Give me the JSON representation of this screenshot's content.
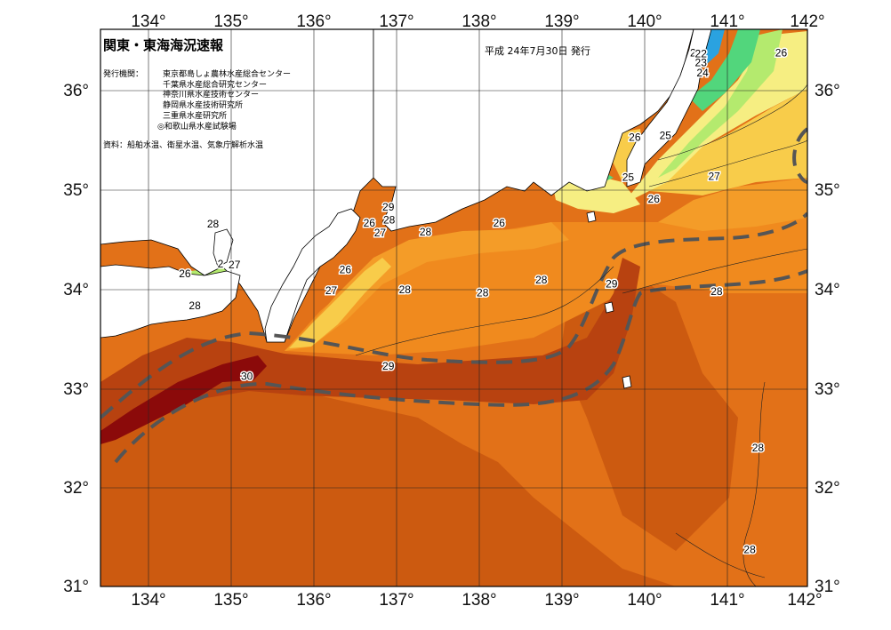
{
  "header": {
    "title": "関東・東海海況速報",
    "date": "平成 24年7月30日 発行",
    "issuer_label": "発行機関：",
    "issuers": [
      "東京都島しょ農林水産総合センター",
      "千葉県水産総合研究センター",
      "神奈川県水産技術センター",
      "静岡県水産技術研究所",
      "三重県水産研究所",
      "◎和歌山県水産試験場"
    ],
    "source": "資料：船舶水温、衛星水温、気象庁解析水温"
  },
  "axes": {
    "longitude_ticks": [
      "134°",
      "135°",
      "136°",
      "137°",
      "138°",
      "139°",
      "140°",
      "141°",
      "142°"
    ],
    "latitude_ticks": [
      "36°",
      "35°",
      "34°",
      "33°",
      "32°",
      "31°"
    ],
    "lon_range": [
      133.5,
      142
    ],
    "lat_range": [
      31,
      36.6
    ]
  },
  "isotherm_labels": [
    {
      "text": "21",
      "lon": 140.62,
      "lat": 36.38
    },
    {
      "text": "22",
      "lon": 140.68,
      "lat": 36.37
    },
    {
      "text": "23",
      "lon": 140.68,
      "lat": 36.28
    },
    {
      "text": "24",
      "lon": 140.7,
      "lat": 36.18
    },
    {
      "text": "26",
      "lon": 141.65,
      "lat": 36.38
    },
    {
      "text": "25",
      "lon": 140.25,
      "lat": 35.55
    },
    {
      "text": "26",
      "lon": 139.88,
      "lat": 35.53
    },
    {
      "text": "25",
      "lon": 139.8,
      "lat": 35.13
    },
    {
      "text": "27",
      "lon": 140.84,
      "lat": 35.14
    },
    {
      "text": "26",
      "lon": 140.11,
      "lat": 34.91
    },
    {
      "text": "26",
      "lon": 138.24,
      "lat": 34.67
    },
    {
      "text": "29",
      "lon": 136.9,
      "lat": 34.83
    },
    {
      "text": "28",
      "lon": 136.91,
      "lat": 34.7
    },
    {
      "text": "26",
      "lon": 136.67,
      "lat": 34.67
    },
    {
      "text": "27",
      "lon": 136.8,
      "lat": 34.57
    },
    {
      "text": "28",
      "lon": 137.35,
      "lat": 34.58
    },
    {
      "text": "26",
      "lon": 136.38,
      "lat": 34.2
    },
    {
      "text": "28",
      "lon": 134.78,
      "lat": 34.66
    },
    {
      "text": "2",
      "lon": 134.87,
      "lat": 34.26
    },
    {
      "text": "27",
      "lon": 135.04,
      "lat": 34.25
    },
    {
      "text": "26",
      "lon": 134.44,
      "lat": 34.16
    },
    {
      "text": "28",
      "lon": 134.56,
      "lat": 33.84
    },
    {
      "text": "27",
      "lon": 136.21,
      "lat": 33.99
    },
    {
      "text": "28",
      "lon": 137.1,
      "lat": 34.0
    },
    {
      "text": "28",
      "lon": 138.04,
      "lat": 33.97
    },
    {
      "text": "28",
      "lon": 138.75,
      "lat": 34.1
    },
    {
      "text": "29",
      "lon": 139.6,
      "lat": 34.06
    },
    {
      "text": "28",
      "lon": 140.87,
      "lat": 33.98
    },
    {
      "text": "29",
      "lon": 136.9,
      "lat": 33.23
    },
    {
      "text": "30",
      "lon": 135.19,
      "lat": 33.13
    },
    {
      "text": "28",
      "lon": 141.37,
      "lat": 32.41
    },
    {
      "text": "28",
      "lon": 141.27,
      "lat": 31.39
    }
  ],
  "colors": {
    "temp_30": "#8b0a0a",
    "temp_29": "#b84210",
    "temp_28_5": "#cc5a10",
    "temp_28": "#e27118",
    "temp_27": "#f08a1e",
    "temp_26": "#f49c28",
    "temp_25": "#f8cc4a",
    "temp_24": "#f6ee82",
    "temp_23": "#b4ea6e",
    "temp_22": "#52d67c",
    "temp_21": "#2aa2e0",
    "land": "#ffffff",
    "kuroshio_path": "#555555"
  }
}
